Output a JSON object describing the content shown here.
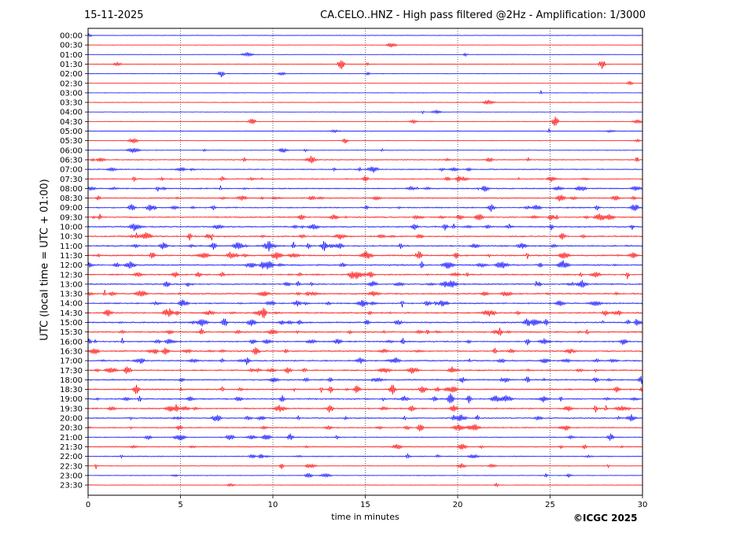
{
  "header": {
    "date": "15-11-2025",
    "title": "CA.CELO..HNZ - High pass filtered @2Hz - Amplification: 1/3000"
  },
  "credit": "©ICGC 2025",
  "chart_data": {
    "type": "line",
    "title": "CA.CELO..HNZ - High pass filtered @2Hz - Amplification: 1/3000",
    "xlabel": "time in minutes",
    "ylabel": "UTC (local time = UTC + 01:00)",
    "xlim": [
      0,
      30
    ],
    "x_ticks": [
      0,
      5,
      10,
      15,
      20,
      25,
      30
    ],
    "vertical_dotted_grid_at": [
      5,
      10,
      15,
      20,
      25
    ],
    "y_ticks": [
      "00:00",
      "00:30",
      "01:00",
      "01:30",
      "02:00",
      "02:30",
      "03:00",
      "03:30",
      "04:00",
      "04:30",
      "05:00",
      "05:30",
      "06:00",
      "06:30",
      "07:00",
      "07:30",
      "08:00",
      "08:30",
      "09:00",
      "09:30",
      "10:00",
      "10:30",
      "11:00",
      "11:30",
      "12:00",
      "12:30",
      "13:00",
      "13:30",
      "14:00",
      "14:30",
      "15:00",
      "15:30",
      "16:00",
      "16:30",
      "17:00",
      "17:30",
      "18:00",
      "18:30",
      "19:00",
      "19:30",
      "20:00",
      "20:30",
      "21:00",
      "21:30",
      "22:00",
      "22:30",
      "23:00",
      "23:30"
    ],
    "trace_colors": [
      "#0000ff",
      "#ff0000"
    ],
    "trace_activity": [
      0.04,
      0.05,
      0.07,
      0.08,
      0.07,
      0.04,
      0.03,
      0.05,
      0.06,
      0.08,
      0.12,
      0.14,
      0.22,
      0.32,
      0.4,
      0.48,
      0.52,
      0.55,
      0.55,
      0.6,
      0.65,
      0.65,
      0.7,
      0.72,
      0.7,
      0.65,
      0.66,
      0.66,
      0.66,
      0.68,
      0.7,
      0.68,
      0.66,
      0.64,
      0.64,
      0.62,
      0.64,
      0.66,
      0.7,
      0.64,
      0.55,
      0.45,
      0.38,
      0.36,
      0.34,
      0.26,
      0.18,
      0.08
    ],
    "events": [
      {
        "row": "01:30",
        "minute": 13.7,
        "amplitude": 2.5
      },
      {
        "row": "01:30",
        "minute": 27.8,
        "amplitude": 2.3
      },
      {
        "row": "02:00",
        "minute": 7.2,
        "amplitude": 1.6
      },
      {
        "row": "04:30",
        "minute": 8.9,
        "amplitude": 1.6
      },
      {
        "row": "04:30",
        "minute": 25.3,
        "amplitude": 2.2
      },
      {
        "row": "06:30",
        "minute": 12.1,
        "amplitude": 2.0
      },
      {
        "row": "11:00",
        "minute": 9.8,
        "amplitude": 2.4
      },
      {
        "row": "11:00",
        "minute": 12.8,
        "amplitude": 2.4
      },
      {
        "row": "11:30",
        "minute": 17.9,
        "amplitude": 2.2
      },
      {
        "row": "14:30",
        "minute": 4.4,
        "amplitude": 2.0
      },
      {
        "row": "14:30",
        "minute": 9.5,
        "amplitude": 2.6
      },
      {
        "row": "15:00",
        "minute": 7.4,
        "amplitude": 2.0
      },
      {
        "row": "16:30",
        "minute": 9.1,
        "amplitude": 2.0
      },
      {
        "row": "18:30",
        "minute": 2.6,
        "amplitude": 2.3
      },
      {
        "row": "18:30",
        "minute": 16.5,
        "amplitude": 2.2
      },
      {
        "row": "19:00",
        "minute": 19.6,
        "amplitude": 2.5
      },
      {
        "row": "19:30",
        "minute": 13.1,
        "amplitude": 2.0
      },
      {
        "row": "20:30",
        "minute": 18.0,
        "amplitude": 1.8
      },
      {
        "row": "21:00",
        "minute": 28.3,
        "amplitude": 1.8
      }
    ]
  }
}
